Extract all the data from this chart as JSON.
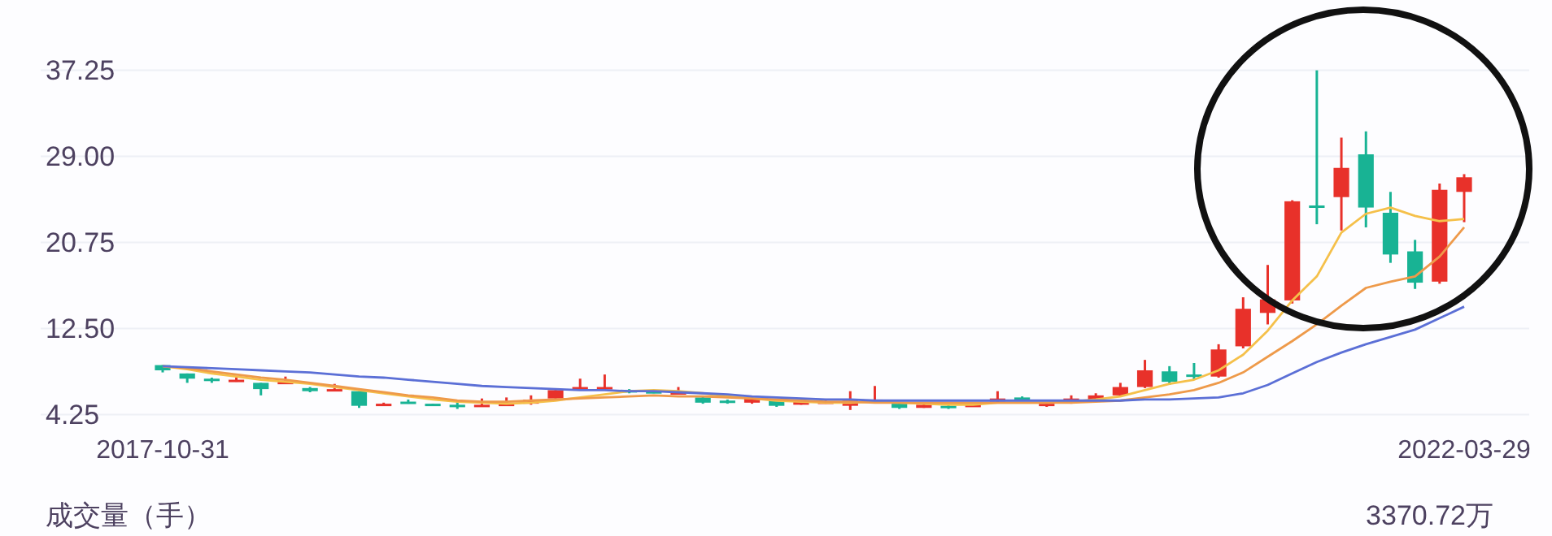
{
  "chart_data": {
    "type": "candlestick",
    "categories": [
      "2017-10-31",
      null,
      null,
      null,
      null,
      null,
      null,
      null,
      null,
      null,
      null,
      null,
      null,
      null,
      null,
      null,
      null,
      null,
      null,
      null,
      null,
      null,
      null,
      null,
      null,
      null,
      null,
      null,
      null,
      null,
      null,
      null,
      null,
      null,
      null,
      null,
      null,
      null,
      null,
      null,
      null,
      null,
      null,
      null,
      null,
      null,
      null,
      null,
      null,
      null,
      null,
      null,
      null,
      "2022-03-29"
    ],
    "ohlc": [
      [
        9.0,
        9.0,
        8.3,
        8.5
      ],
      [
        8.2,
        8.2,
        7.3,
        7.7
      ],
      [
        7.7,
        7.8,
        7.3,
        7.6
      ],
      [
        7.4,
        7.8,
        7.4,
        7.6
      ],
      [
        7.3,
        7.3,
        6.1,
        6.7
      ],
      [
        7.2,
        7.9,
        7.2,
        7.4
      ],
      [
        6.8,
        6.9,
        6.4,
        6.5
      ],
      [
        6.5,
        7.2,
        6.5,
        6.7
      ],
      [
        6.5,
        6.5,
        4.9,
        5.1
      ],
      [
        5.1,
        5.4,
        5.1,
        5.3
      ],
      [
        5.5,
        5.7,
        5.3,
        5.4
      ],
      [
        5.3,
        5.3,
        5.1,
        5.2
      ],
      [
        5.2,
        5.5,
        4.8,
        5.1
      ],
      [
        5.1,
        5.8,
        5.0,
        5.2
      ],
      [
        5.1,
        5.9,
        5.1,
        5.3
      ],
      [
        5.3,
        6.1,
        5.2,
        5.7
      ],
      [
        5.8,
        6.6,
        5.8,
        6.6
      ],
      [
        6.7,
        7.7,
        6.6,
        6.9
      ],
      [
        6.8,
        8.1,
        6.6,
        6.9
      ],
      [
        6.6,
        6.7,
        6.3,
        6.4
      ],
      [
        6.5,
        6.6,
        6.3,
        6.3
      ],
      [
        6.3,
        6.9,
        6.2,
        6.4
      ],
      [
        5.9,
        6.0,
        5.3,
        5.4
      ],
      [
        5.6,
        5.7,
        5.3,
        5.4
      ],
      [
        5.4,
        5.9,
        5.3,
        5.8
      ],
      [
        5.6,
        5.7,
        5.0,
        5.1
      ],
      [
        5.2,
        5.6,
        5.2,
        5.5
      ],
      [
        5.4,
        5.6,
        5.3,
        5.5
      ],
      [
        5.1,
        6.5,
        4.7,
        5.6
      ],
      [
        5.5,
        7.0,
        5.4,
        5.7
      ],
      [
        5.3,
        5.4,
        4.8,
        4.9
      ],
      [
        4.9,
        5.3,
        4.9,
        5.2
      ],
      [
        5.1,
        5.2,
        4.8,
        4.9
      ],
      [
        5.0,
        5.3,
        5.0,
        5.2
      ],
      [
        5.5,
        6.5,
        5.4,
        5.8
      ],
      [
        5.9,
        6.0,
        5.6,
        5.7
      ],
      [
        5.1,
        5.4,
        5.0,
        5.3
      ],
      [
        5.4,
        6.1,
        5.3,
        5.8
      ],
      [
        5.6,
        6.3,
        5.5,
        6.1
      ],
      [
        6.1,
        7.3,
        6.0,
        6.9
      ],
      [
        6.9,
        9.5,
        6.8,
        8.5
      ],
      [
        8.4,
        8.9,
        7.1,
        7.4
      ],
      [
        8.1,
        9.2,
        7.6,
        7.9
      ],
      [
        7.9,
        11.0,
        7.8,
        10.5
      ],
      [
        10.8,
        15.5,
        10.6,
        14.4
      ],
      [
        14.0,
        18.6,
        12.9,
        15.3
      ],
      [
        15.2,
        24.8,
        14.9,
        24.7
      ],
      [
        24.3,
        37.25,
        22.5,
        24.1
      ],
      [
        25.1,
        30.8,
        21.9,
        27.9
      ],
      [
        29.2,
        31.4,
        22.2,
        24.1
      ],
      [
        23.6,
        25.6,
        18.8,
        19.6
      ],
      [
        19.9,
        21.0,
        16.3,
        16.9
      ],
      [
        17.0,
        26.4,
        16.8,
        25.8
      ],
      [
        25.6,
        27.3,
        22.7,
        27.0
      ]
    ],
    "colors": [
      "#18b394",
      "#18b394",
      "#18b394",
      "#e8312a",
      "#18b394",
      "#e8312a",
      "#18b394",
      "#e8312a",
      "#18b394",
      "#e8312a",
      "#18b394",
      "#18b394",
      "#18b394",
      "#e8312a",
      "#e8312a",
      "#e8312a",
      "#e8312a",
      "#e8312a",
      "#e8312a",
      "#18b394",
      "#18b394",
      "#e8312a",
      "#18b394",
      "#18b394",
      "#e8312a",
      "#18b394",
      "#e8312a",
      "#e8312a",
      "#e8312a",
      "#e8312a",
      "#18b394",
      "#e8312a",
      "#18b394",
      "#e8312a",
      "#e8312a",
      "#18b394",
      "#e8312a",
      "#e8312a",
      "#e8312a",
      "#e8312a",
      "#e8312a",
      "#18b394",
      "#18b394",
      "#e8312a",
      "#e8312a",
      "#e8312a",
      "#e8312a",
      "#18b394",
      "#e8312a",
      "#18b394",
      "#18b394",
      "#18b394",
      "#e8312a",
      "#e8312a"
    ],
    "series": [
      {
        "type": "line",
        "color": "#f5c04a",
        "values": [
          8.9,
          8.6,
          8.2,
          7.9,
          7.6,
          7.4,
          7.2,
          6.9,
          6.6,
          6.3,
          6.0,
          5.7,
          5.5,
          5.4,
          5.3,
          5.4,
          5.6,
          5.9,
          6.2,
          6.5,
          6.6,
          6.5,
          6.3,
          6.0,
          5.8,
          5.6,
          5.5,
          5.4,
          5.4,
          5.5,
          5.4,
          5.3,
          5.2,
          5.2,
          5.4,
          5.4,
          5.4,
          5.5,
          5.7,
          6.0,
          6.6,
          7.2,
          7.6,
          8.5,
          10.0,
          12.3,
          15.2,
          17.5,
          21.7,
          23.5,
          24.1,
          23.3,
          22.8,
          23.0
        ]
      },
      {
        "type": "line",
        "color": "#ee9a4a",
        "values": [
          8.9,
          8.7,
          8.4,
          8.1,
          7.8,
          7.6,
          7.3,
          7.0,
          6.7,
          6.4,
          6.1,
          5.9,
          5.6,
          5.5,
          5.5,
          5.6,
          5.7,
          5.8,
          5.9,
          6.0,
          6.1,
          6.0,
          6.0,
          5.9,
          5.8,
          5.7,
          5.6,
          5.5,
          5.5,
          5.4,
          5.4,
          5.4,
          5.4,
          5.4,
          5.4,
          5.4,
          5.4,
          5.4,
          5.5,
          5.6,
          5.9,
          6.2,
          6.6,
          7.3,
          8.3,
          9.8,
          11.3,
          12.9,
          14.7,
          16.4,
          17.0,
          17.5,
          19.4,
          22.2
        ]
      },
      {
        "type": "line",
        "color": "#5b6fd6",
        "values": [
          8.9,
          8.8,
          8.7,
          8.6,
          8.5,
          8.4,
          8.3,
          8.1,
          7.9,
          7.8,
          7.6,
          7.4,
          7.2,
          7.0,
          6.9,
          6.8,
          6.7,
          6.6,
          6.6,
          6.5,
          6.5,
          6.4,
          6.3,
          6.2,
          6.0,
          5.9,
          5.8,
          5.7,
          5.7,
          5.6,
          5.6,
          5.6,
          5.6,
          5.6,
          5.6,
          5.6,
          5.6,
          5.6,
          5.6,
          5.6,
          5.7,
          5.7,
          5.8,
          5.9,
          6.3,
          7.1,
          8.2,
          9.3,
          10.2,
          11.0,
          11.7,
          12.4,
          13.5,
          14.6
        ]
      }
    ],
    "ylim": [
      4.25,
      37.25
    ],
    "yticks": [
      4.25,
      {
        "value": 12.5,
        "label": "12.50"
      },
      20.75,
      {
        "value": 29,
        "label": "29.00"
      },
      37.25
    ],
    "grid": "y",
    "marker": "none",
    "annotations": [
      "成交量（手）",
      "3370.72万"
    ]
  }
}
